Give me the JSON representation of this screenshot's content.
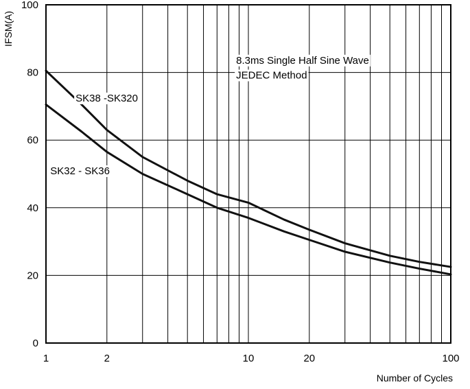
{
  "chart_data": {
    "type": "line",
    "xlabel": "Number of Cycles",
    "ylabel": "IFSM(A)",
    "x_scale": "log",
    "xlim": [
      1,
      100
    ],
    "ylim": [
      0,
      100
    ],
    "x_ticks": [
      1,
      2,
      10,
      20,
      100
    ],
    "x_tick_labels": [
      "1",
      "2",
      "10",
      "20",
      "100"
    ],
    "y_ticks": [
      0,
      20,
      40,
      60,
      80,
      100
    ],
    "y_tick_labels": [
      "0",
      "20",
      "40",
      "60",
      "80",
      "100"
    ],
    "grid": true,
    "x_gridlines": [
      2,
      3,
      4,
      5,
      6,
      7,
      8,
      9,
      10,
      20,
      30,
      40,
      50,
      60,
      70,
      80,
      90
    ],
    "y_gridlines": [
      20,
      40,
      60,
      80
    ],
    "annotations": [
      {
        "text": "8.3ms Single Half Sine Wave",
        "x": 8.7,
        "y": 82.6
      },
      {
        "text": "JEDEC Method",
        "x": 8.7,
        "y": 78.2
      }
    ],
    "series": [
      {
        "name": "SK38 -SK320",
        "label_at": {
          "x": 1.4,
          "y": 71.4
        },
        "x": [
          1,
          1.5,
          2,
          3,
          5,
          7,
          10,
          15,
          20,
          30,
          50,
          70,
          100
        ],
        "y": [
          80.5,
          70.5,
          63,
          55,
          48,
          44,
          41.5,
          36.5,
          33.5,
          29.5,
          25.8,
          24,
          22.5
        ]
      },
      {
        "name": "SK32 - SK36",
        "label_at": {
          "x": 1.05,
          "y": 49.9
        },
        "x": [
          1,
          1.5,
          2,
          3,
          5,
          7,
          10,
          15,
          20,
          30,
          50,
          70,
          100
        ],
        "y": [
          70.5,
          62.5,
          56.5,
          50,
          44,
          40,
          37,
          33,
          30.5,
          27,
          23.8,
          22,
          20.3
        ]
      }
    ]
  }
}
